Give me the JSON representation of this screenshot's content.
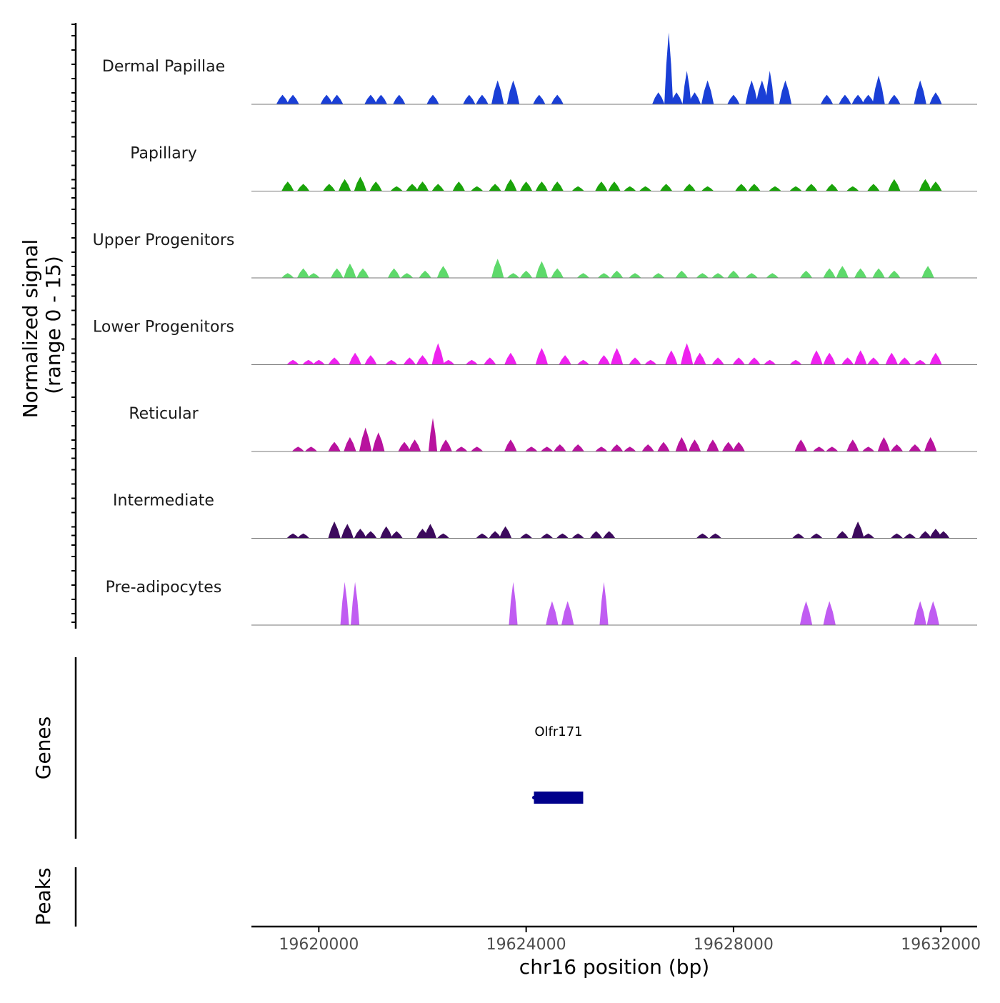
{
  "chart_data": {
    "type": "area",
    "title": "",
    "xlabel": "chr16 position (bp)",
    "ylabel": "Normalized signal",
    "ylabel_range": "(range 0 - 15)",
    "chromosome": "chr16",
    "xlim": [
      19618700,
      19632700
    ],
    "ylim": [
      0,
      15
    ],
    "x_ticks": [
      19620000,
      19624000,
      19628000,
      19632000
    ],
    "x_tick_labels": [
      "19620000",
      "19624000",
      "19628000",
      "19632000"
    ],
    "tracks": [
      {
        "name": "Dermal Papillae",
        "color": "#1a3fd6",
        "peaks": [
          [
            19619300,
            2
          ],
          [
            19619500,
            2
          ],
          [
            19620150,
            2
          ],
          [
            19620350,
            2
          ],
          [
            19621000,
            2
          ],
          [
            19621200,
            2
          ],
          [
            19621550,
            2
          ],
          [
            19622200,
            2
          ],
          [
            19622900,
            2
          ],
          [
            19623150,
            2
          ],
          [
            19623450,
            5
          ],
          [
            19623750,
            5
          ],
          [
            19624250,
            2
          ],
          [
            19624600,
            2
          ],
          [
            19626550,
            2.5
          ],
          [
            19626750,
            15
          ],
          [
            19626900,
            2.5
          ],
          [
            19627100,
            7
          ],
          [
            19627250,
            2.5
          ],
          [
            19627500,
            5
          ],
          [
            19628000,
            2
          ],
          [
            19628350,
            5
          ],
          [
            19628550,
            5
          ],
          [
            19628700,
            7
          ],
          [
            19629000,
            5
          ],
          [
            19629800,
            2
          ],
          [
            19630150,
            2
          ],
          [
            19630400,
            2
          ],
          [
            19630600,
            2
          ],
          [
            19630800,
            6
          ],
          [
            19631100,
            2
          ],
          [
            19631600,
            5
          ],
          [
            19631900,
            2.5
          ]
        ]
      },
      {
        "name": "Papillary",
        "color": "#1aa30a",
        "peaks": [
          [
            19619400,
            2
          ],
          [
            19619700,
            1.5
          ],
          [
            19620200,
            1.5
          ],
          [
            19620500,
            2.5
          ],
          [
            19620800,
            3
          ],
          [
            19621100,
            2
          ],
          [
            19621500,
            1
          ],
          [
            19621800,
            1.5
          ],
          [
            19622000,
            2
          ],
          [
            19622300,
            1.5
          ],
          [
            19622700,
            2
          ],
          [
            19623050,
            1
          ],
          [
            19623400,
            1.5
          ],
          [
            19623700,
            2.5
          ],
          [
            19624000,
            2
          ],
          [
            19624300,
            2
          ],
          [
            19624600,
            2
          ],
          [
            19625000,
            1
          ],
          [
            19625450,
            2
          ],
          [
            19625700,
            2
          ],
          [
            19626000,
            1
          ],
          [
            19626300,
            1
          ],
          [
            19626700,
            1.5
          ],
          [
            19627150,
            1.5
          ],
          [
            19627500,
            1
          ],
          [
            19628150,
            1.5
          ],
          [
            19628400,
            1.5
          ],
          [
            19628800,
            1
          ],
          [
            19629200,
            1
          ],
          [
            19629500,
            1.5
          ],
          [
            19629900,
            1.5
          ],
          [
            19630300,
            1
          ],
          [
            19630700,
            1.5
          ],
          [
            19631100,
            2.5
          ],
          [
            19631700,
            2.5
          ],
          [
            19631900,
            2
          ]
        ]
      },
      {
        "name": "Upper Progenitors",
        "color": "#5ed96b",
        "peaks": [
          [
            19619400,
            1
          ],
          [
            19619700,
            2
          ],
          [
            19619900,
            1
          ],
          [
            19620350,
            2
          ],
          [
            19620600,
            3
          ],
          [
            19620850,
            2
          ],
          [
            19621450,
            2
          ],
          [
            19621700,
            1
          ],
          [
            19622050,
            1.5
          ],
          [
            19622400,
            2.5
          ],
          [
            19623450,
            4
          ],
          [
            19623750,
            1
          ],
          [
            19624000,
            1.5
          ],
          [
            19624300,
            3.5
          ],
          [
            19624600,
            2
          ],
          [
            19625100,
            1
          ],
          [
            19625500,
            1
          ],
          [
            19625750,
            1.5
          ],
          [
            19626100,
            1
          ],
          [
            19626550,
            1
          ],
          [
            19627000,
            1.5
          ],
          [
            19627400,
            1
          ],
          [
            19627700,
            1
          ],
          [
            19628000,
            1.5
          ],
          [
            19628350,
            1
          ],
          [
            19628750,
            1
          ],
          [
            19629400,
            1.5
          ],
          [
            19629850,
            2
          ],
          [
            19630100,
            2.5
          ],
          [
            19630450,
            2
          ],
          [
            19630800,
            2
          ],
          [
            19631100,
            1.5
          ],
          [
            19631750,
            2.5
          ]
        ]
      },
      {
        "name": "Lower Progenitors",
        "color": "#ee22ee",
        "peaks": [
          [
            19619500,
            1
          ],
          [
            19619800,
            1
          ],
          [
            19620000,
            1
          ],
          [
            19620300,
            1.5
          ],
          [
            19620700,
            2.5
          ],
          [
            19621000,
            2
          ],
          [
            19621400,
            1
          ],
          [
            19621750,
            1.5
          ],
          [
            19622000,
            2
          ],
          [
            19622300,
            4.5
          ],
          [
            19622500,
            1
          ],
          [
            19622950,
            1
          ],
          [
            19623300,
            1.5
          ],
          [
            19623700,
            2.5
          ],
          [
            19624300,
            3.5
          ],
          [
            19624750,
            2
          ],
          [
            19625100,
            1
          ],
          [
            19625500,
            2
          ],
          [
            19625750,
            3.5
          ],
          [
            19626100,
            1.5
          ],
          [
            19626400,
            1
          ],
          [
            19626800,
            3
          ],
          [
            19627100,
            4.5
          ],
          [
            19627350,
            2.5
          ],
          [
            19627700,
            1.5
          ],
          [
            19628100,
            1.5
          ],
          [
            19628400,
            1.5
          ],
          [
            19628700,
            1
          ],
          [
            19629200,
            1
          ],
          [
            19629600,
            3
          ],
          [
            19629850,
            2.5
          ],
          [
            19630200,
            1.5
          ],
          [
            19630450,
            3
          ],
          [
            19630700,
            1.5
          ],
          [
            19631050,
            2.5
          ],
          [
            19631300,
            1.5
          ],
          [
            19631600,
            1
          ],
          [
            19631900,
            2.5
          ]
        ]
      },
      {
        "name": "Reticular",
        "color": "#b8129e",
        "peaks": [
          [
            19619600,
            1
          ],
          [
            19619850,
            1
          ],
          [
            19620300,
            2
          ],
          [
            19620600,
            3
          ],
          [
            19620900,
            5
          ],
          [
            19621150,
            4
          ],
          [
            19621650,
            2
          ],
          [
            19621850,
            2.5
          ],
          [
            19622200,
            7
          ],
          [
            19622450,
            2.5
          ],
          [
            19622750,
            1
          ],
          [
            19623050,
            1
          ],
          [
            19623700,
            2.5
          ],
          [
            19624100,
            1
          ],
          [
            19624400,
            1
          ],
          [
            19624650,
            1.5
          ],
          [
            19625000,
            1.5
          ],
          [
            19625450,
            1
          ],
          [
            19625750,
            1.5
          ],
          [
            19626000,
            1
          ],
          [
            19626350,
            1.5
          ],
          [
            19626650,
            2
          ],
          [
            19627000,
            3
          ],
          [
            19627250,
            2.5
          ],
          [
            19627600,
            2.5
          ],
          [
            19627900,
            2
          ],
          [
            19628100,
            2
          ],
          [
            19629300,
            2.5
          ],
          [
            19629650,
            1
          ],
          [
            19629900,
            1
          ],
          [
            19630300,
            2.5
          ],
          [
            19630600,
            1
          ],
          [
            19630900,
            3
          ],
          [
            19631150,
            1.5
          ],
          [
            19631500,
            1.5
          ],
          [
            19631800,
            3
          ]
        ]
      },
      {
        "name": "Intermediate",
        "color": "#3c0a5c",
        "peaks": [
          [
            19619500,
            1
          ],
          [
            19619700,
            1
          ],
          [
            19620300,
            3.5
          ],
          [
            19620550,
            3
          ],
          [
            19620800,
            2
          ],
          [
            19621000,
            1.5
          ],
          [
            19621300,
            2.5
          ],
          [
            19621500,
            1.5
          ],
          [
            19622000,
            2
          ],
          [
            19622150,
            3
          ],
          [
            19622400,
            1
          ],
          [
            19623150,
            1
          ],
          [
            19623400,
            1.5
          ],
          [
            19623600,
            2.5
          ],
          [
            19624000,
            1
          ],
          [
            19624400,
            1
          ],
          [
            19624700,
            1
          ],
          [
            19625000,
            1
          ],
          [
            19625350,
            1.5
          ],
          [
            19625600,
            1.5
          ],
          [
            19627400,
            1
          ],
          [
            19627650,
            1
          ],
          [
            19629250,
            1
          ],
          [
            19629600,
            1
          ],
          [
            19630100,
            1.5
          ],
          [
            19630400,
            3.5
          ],
          [
            19630600,
            1
          ],
          [
            19631150,
            1
          ],
          [
            19631400,
            1
          ],
          [
            19631700,
            1.5
          ],
          [
            19631900,
            2
          ],
          [
            19632050,
            1.5
          ]
        ]
      },
      {
        "name": "Pre-adipocytes",
        "color": "#c05cf2",
        "peaks": [
          [
            19620500,
            9
          ],
          [
            19620700,
            9
          ],
          [
            19623750,
            9
          ],
          [
            19624500,
            5
          ],
          [
            19624800,
            5
          ],
          [
            19625500,
            9
          ],
          [
            19629400,
            5
          ],
          [
            19629850,
            5
          ],
          [
            19631600,
            5
          ],
          [
            19631850,
            5
          ]
        ]
      }
    ],
    "genes_label": "Genes",
    "genes": [
      {
        "name": "Olfr171",
        "start": 19624150,
        "end": 19625100,
        "strand": "-",
        "color": "#00008b"
      }
    ],
    "peaks_label": "Peaks"
  }
}
